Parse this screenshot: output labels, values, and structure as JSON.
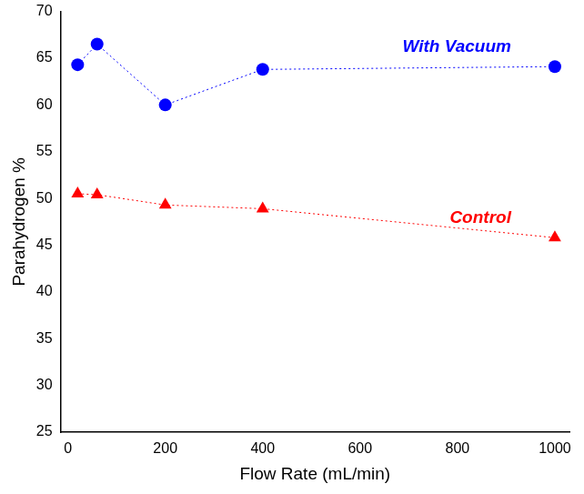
{
  "chart_data": {
    "type": "line",
    "x_label": "Flow Rate (mL/min)",
    "y_label": "Parahydrogen %",
    "x": [
      20,
      60,
      200,
      400,
      1000
    ],
    "series": [
      {
        "name": "With Vacuum",
        "color": "#0000ff",
        "marker": "circle",
        "line_style": "dotted",
        "values": [
          64.3,
          66.5,
          60.0,
          63.8,
          64.1
        ]
      },
      {
        "name": "Control",
        "color": "#ff0000",
        "marker": "triangle",
        "line_style": "dotted",
        "values": [
          50.5,
          50.4,
          49.3,
          48.9,
          45.8
        ]
      }
    ],
    "xlim": [
      -15,
      1030
    ],
    "xticks": [
      0,
      200,
      400,
      600,
      800,
      1000
    ],
    "ylim": [
      25,
      70
    ],
    "yticks": [
      25,
      30,
      35,
      40,
      45,
      50,
      55,
      60,
      65,
      70
    ],
    "grid": false
  }
}
